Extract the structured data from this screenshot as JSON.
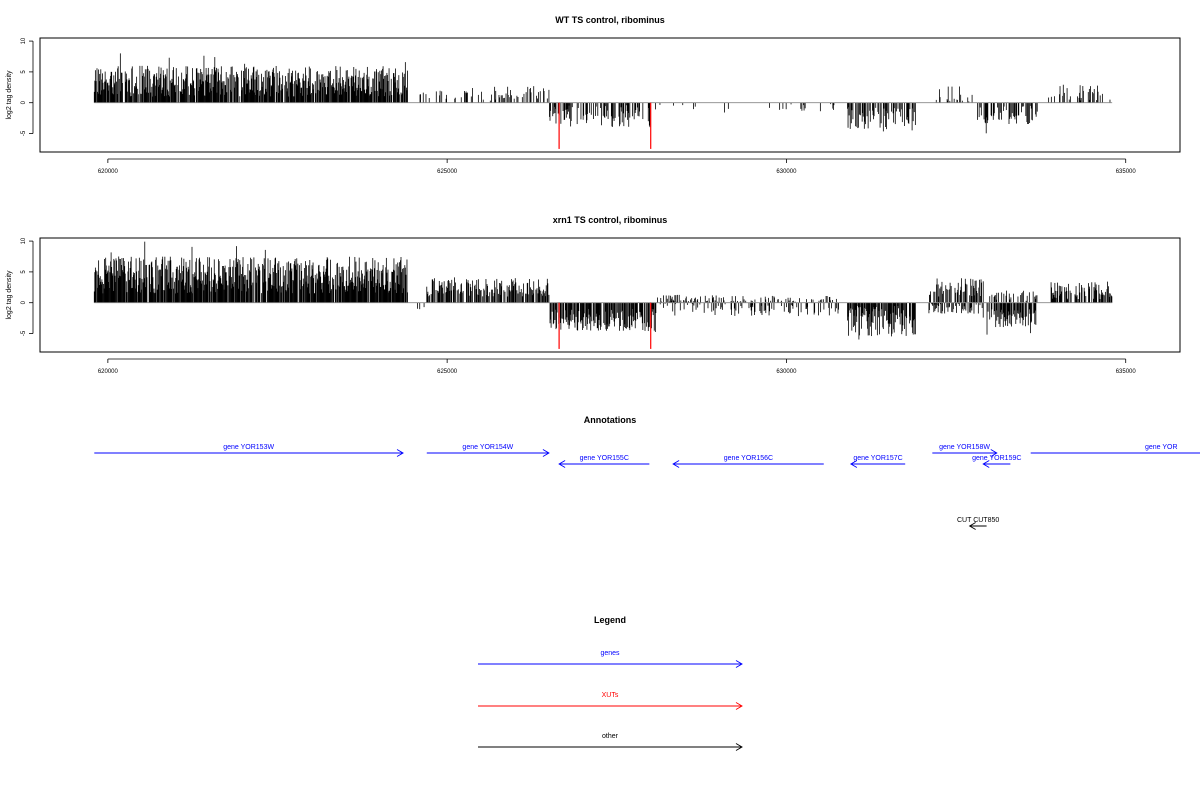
{
  "chart_data": [
    {
      "type": "bar",
      "title": "WT TS control, ribominus",
      "ylabel": "log2 tag density",
      "xlim": [
        619000,
        635800
      ],
      "ylim": [
        -8,
        10.5
      ],
      "x_ticks": [
        620000,
        625000,
        630000,
        635000
      ],
      "x_tick_labels": [
        "620000",
        "625000",
        "630000",
        "635000"
      ],
      "y_ticks": [
        -5,
        0,
        5,
        10
      ],
      "y_tick_labels": [
        "-5",
        "0",
        "5",
        "10"
      ],
      "baseline_range": [
        619800,
        634800
      ],
      "segments": [
        {
          "start": 619800,
          "end": 624420,
          "sign": 1,
          "mean": 3.5,
          "amp": 2.5,
          "density": 0.85
        },
        {
          "start": 624600,
          "end": 625300,
          "sign": 1,
          "mean": 1.2,
          "amp": 0.8,
          "density": 0.2
        },
        {
          "start": 625300,
          "end": 626500,
          "sign": 1,
          "mean": 1.5,
          "amp": 1.2,
          "density": 0.25
        },
        {
          "start": 626500,
          "end": 628000,
          "sign": -1,
          "mean": 2.2,
          "amp": 1.8,
          "density": 0.45
        },
        {
          "start": 628000,
          "end": 628700,
          "sign": -1,
          "mean": 0.8,
          "amp": 0.5,
          "density": 0.1
        },
        {
          "start": 629000,
          "end": 629800,
          "sign": -1,
          "mean": 1.0,
          "amp": 0.8,
          "density": 0.08
        },
        {
          "start": 629900,
          "end": 630800,
          "sign": -1,
          "mean": 0.8,
          "amp": 0.6,
          "density": 0.07
        },
        {
          "start": 630900,
          "end": 631900,
          "sign": -1,
          "mean": 2.5,
          "amp": 2.0,
          "density": 0.5
        },
        {
          "start": 632200,
          "end": 632800,
          "sign": 1,
          "mean": 1.2,
          "amp": 1.5,
          "density": 0.25
        },
        {
          "start": 632800,
          "end": 633700,
          "sign": -1,
          "mean": 2.0,
          "amp": 1.5,
          "density": 0.4
        },
        {
          "start": 633800,
          "end": 634000,
          "sign": 1,
          "mean": 1.0,
          "amp": 1.0,
          "density": 0.15
        },
        {
          "start": 634000,
          "end": 634800,
          "sign": 1,
          "mean": 1.5,
          "amp": 1.5,
          "density": 0.25
        }
      ],
      "highlights": [
        {
          "x": 626650,
          "y": -7.5,
          "color": "#ff0000"
        },
        {
          "x": 628000,
          "y": -7.5,
          "color": "#ff0000"
        }
      ]
    },
    {
      "type": "bar",
      "title": "xrn1 TS control, ribominus",
      "ylabel": "log2 tag density",
      "xlim": [
        619000,
        635800
      ],
      "ylim": [
        -8,
        10.5
      ],
      "x_ticks": [
        620000,
        625000,
        630000,
        635000
      ],
      "x_tick_labels": [
        "620000",
        "625000",
        "630000",
        "635000"
      ],
      "y_ticks": [
        -5,
        0,
        5,
        10
      ],
      "y_tick_labels": [
        "-5",
        "0",
        "5",
        "10"
      ],
      "baseline_range": [
        619800,
        634800
      ],
      "segments": [
        {
          "start": 619800,
          "end": 624420,
          "sign": 1,
          "mean": 4.5,
          "amp": 3.0,
          "density": 0.9
        },
        {
          "start": 624500,
          "end": 624700,
          "sign": -1,
          "mean": 1.0,
          "amp": 0.8,
          "density": 0.15
        },
        {
          "start": 624700,
          "end": 626500,
          "sign": 1,
          "mean": 2.5,
          "amp": 1.5,
          "density": 0.6
        },
        {
          "start": 626500,
          "end": 628100,
          "sign": -1,
          "mean": 2.8,
          "amp": 1.8,
          "density": 0.7
        },
        {
          "start": 628100,
          "end": 629000,
          "sign": 1,
          "mean": 0.5,
          "amp": 0.8,
          "density": 0.3
        },
        {
          "start": 628100,
          "end": 629000,
          "sign": -1,
          "mean": 1.0,
          "amp": 1.0,
          "density": 0.25
        },
        {
          "start": 629000,
          "end": 630800,
          "sign": 1,
          "mean": 0.5,
          "amp": 0.6,
          "density": 0.2
        },
        {
          "start": 629000,
          "end": 630800,
          "sign": -1,
          "mean": 1.2,
          "amp": 1.0,
          "density": 0.25
        },
        {
          "start": 630900,
          "end": 631900,
          "sign": -1,
          "mean": 3.0,
          "amp": 2.5,
          "density": 0.75
        },
        {
          "start": 632100,
          "end": 632900,
          "sign": 1,
          "mean": 2.5,
          "amp": 1.5,
          "density": 0.55
        },
        {
          "start": 632100,
          "end": 632900,
          "sign": -1,
          "mean": 1.0,
          "amp": 0.8,
          "density": 0.3
        },
        {
          "start": 632900,
          "end": 633700,
          "sign": -1,
          "mean": 2.5,
          "amp": 1.5,
          "density": 0.6
        },
        {
          "start": 632900,
          "end": 633700,
          "sign": 1,
          "mean": 1.0,
          "amp": 1.0,
          "density": 0.3
        },
        {
          "start": 633900,
          "end": 634800,
          "sign": 1,
          "mean": 2.0,
          "amp": 1.5,
          "density": 0.55
        }
      ],
      "highlights": [
        {
          "x": 626650,
          "y": -7.5,
          "color": "#ff0000"
        },
        {
          "x": 628000,
          "y": -7.5,
          "color": "#ff0000"
        }
      ]
    }
  ],
  "annotations": {
    "title": "Annotations",
    "xlim": [
      619000,
      635800
    ],
    "features": [
      {
        "label": "gene YOR153W",
        "start": 619800,
        "end": 624350,
        "strand": "+",
        "row": 0,
        "color": "#0000ff"
      },
      {
        "label": "gene YOR154W",
        "start": 624700,
        "end": 626500,
        "strand": "+",
        "row": 0,
        "color": "#0000ff"
      },
      {
        "label": "gene YOR155C",
        "start": 626650,
        "end": 627980,
        "strand": "-",
        "row": 1,
        "color": "#0000ff"
      },
      {
        "label": "gene YOR156C",
        "start": 628330,
        "end": 630550,
        "strand": "-",
        "row": 1,
        "color": "#0000ff"
      },
      {
        "label": "gene YOR157C",
        "start": 630950,
        "end": 631750,
        "strand": "-",
        "row": 1,
        "color": "#0000ff"
      },
      {
        "label": "gene YOR158W",
        "start": 632150,
        "end": 633100,
        "strand": "+",
        "row": 0,
        "color": "#0000ff"
      },
      {
        "label": "gene YOR159C",
        "start": 632900,
        "end": 633300,
        "strand": "-",
        "row": 1,
        "color": "#0000ff"
      },
      {
        "label": "gene YOR",
        "start": 633600,
        "end": 636200,
        "strand": "+",
        "row": 0,
        "color": "#0000ff"
      },
      {
        "label": "CUT CUT850",
        "start": 632700,
        "end": 632950,
        "strand": "-",
        "row": 2,
        "color": "#000000"
      }
    ]
  },
  "legend": {
    "title": "Legend",
    "items": [
      {
        "label": "genes",
        "color": "#0000ff"
      },
      {
        "label": "XUTs",
        "color": "#ff0000"
      },
      {
        "label": "other",
        "color": "#000000"
      }
    ]
  }
}
